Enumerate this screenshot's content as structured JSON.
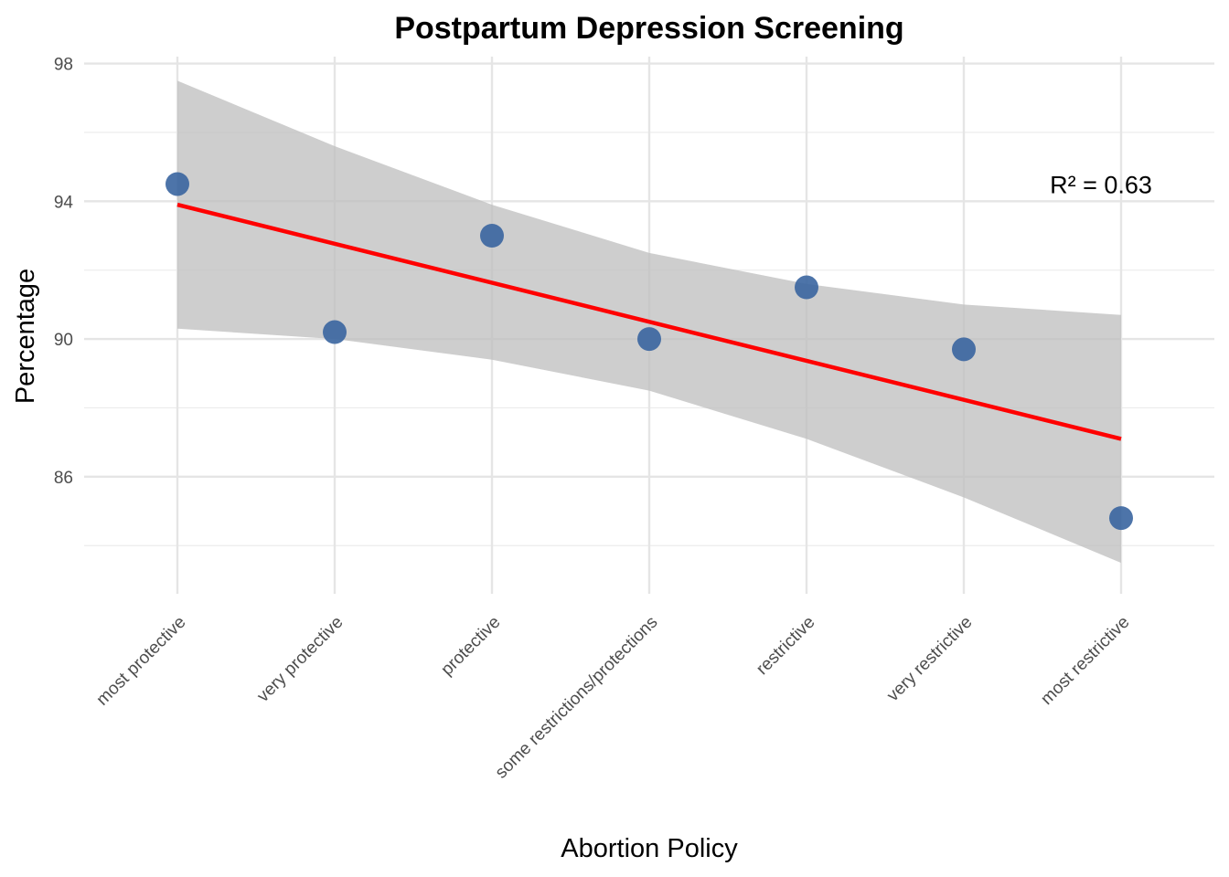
{
  "chart_data": {
    "type": "scatter",
    "title": "Postpartum Depression Screening",
    "xlabel": "Abortion Policy",
    "ylabel": "Percentage",
    "categories": [
      "most protective",
      "very protective",
      "protective",
      "some restrictions/protections",
      "restrictive",
      "very restrictive",
      "most restrictive"
    ],
    "series": [
      {
        "values": [
          94.5,
          90.2,
          93.0,
          90.0,
          91.5,
          89.7,
          84.8
        ],
        "color": "#3a65a0"
      }
    ],
    "trend_line": {
      "color": "#ff0000",
      "start": 93.9,
      "end": 87.1
    },
    "confidence_band": {
      "color": "#bebebe",
      "upper": [
        97.5,
        95.6,
        93.9,
        92.5,
        91.6,
        91.0,
        90.7
      ],
      "lower": [
        90.3,
        90.0,
        89.4,
        88.5,
        87.1,
        85.4,
        83.5
      ]
    },
    "annotation": "R² = 0.63",
    "annotation_position": {
      "x": 6,
      "y": 94.5
    },
    "ylim": [
      82.6,
      98.2
    ],
    "yticks": [
      86,
      90,
      94,
      98
    ],
    "yticks_minor": [
      84,
      88,
      92,
      96
    ],
    "grid": true,
    "legend": "none"
  }
}
